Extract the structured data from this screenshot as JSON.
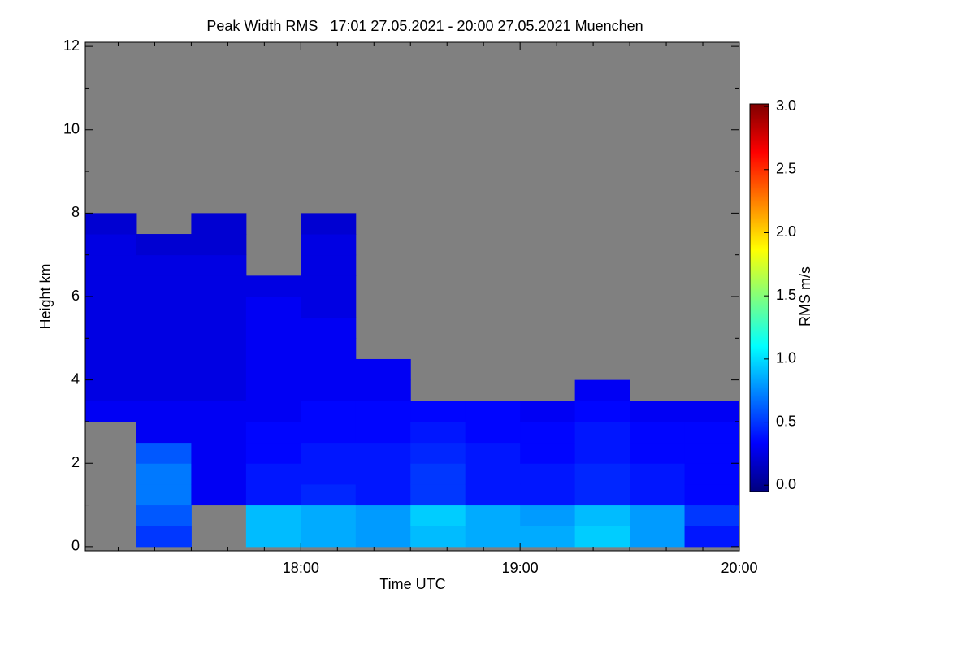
{
  "chart_data": {
    "type": "heatmap",
    "title": "Peak Width RMS   17:01 27.05.2021 - 20:00 27.05.2021 Muenchen",
    "x_label": "Time UTC",
    "y_label": "Height km",
    "colorbar_label": "RMS m/s",
    "nodata_color": "#808080",
    "colorscale": [
      "#00007f",
      "#0000ff",
      "#007fff",
      "#00ffff",
      "#7fff7f",
      "#ffff00",
      "#ff7f00",
      "#ff0000",
      "#7f0000"
    ],
    "xlim": [
      17.0167,
      20.0
    ],
    "xticks": [
      {
        "value": 18,
        "label": "18:00"
      },
      {
        "value": 19,
        "label": "19:00"
      },
      {
        "value": 20,
        "label": "20:00"
      }
    ],
    "xminorticks": [
      17.1667,
      17.3333,
      17.5,
      17.6667,
      17.8333,
      18.1667,
      18.3333,
      18.5,
      18.6667,
      18.8333,
      19.1667,
      19.3333,
      19.5,
      19.6667,
      19.8333
    ],
    "ylim": [
      -0.1,
      12.1
    ],
    "yticks": [
      0,
      2,
      4,
      6,
      8,
      10,
      12
    ],
    "yminorticks": [
      1,
      3,
      5,
      7,
      9,
      11
    ],
    "clim": [
      -0.05,
      3.02
    ],
    "cticks": [
      {
        "value": 0,
        "label": "0.0"
      },
      {
        "value": 0.5,
        "label": "0.5"
      },
      {
        "value": 1,
        "label": "1.0"
      },
      {
        "value": 1.5,
        "label": "1.5"
      },
      {
        "value": 2,
        "label": "2.0"
      },
      {
        "value": 2.5,
        "label": "2.5"
      },
      {
        "value": 3,
        "label": "3.0"
      }
    ],
    "x_edges": [
      17.0167,
      17.25,
      17.5,
      17.75,
      18.0,
      18.25,
      18.5,
      18.75,
      19.0,
      19.25,
      19.5,
      19.75,
      20.0
    ],
    "y_edges": [
      0,
      0.5,
      1,
      1.5,
      2,
      2.5,
      3,
      3.5,
      4,
      4.5,
      5,
      5.5,
      6,
      6.5,
      7,
      7.5,
      8,
      8.5
    ],
    "values": [
      [
        null,
        null,
        null,
        null,
        null,
        null,
        0.3,
        0.25,
        0.25,
        0.25,
        0.25,
        0.25,
        0.25,
        0.25,
        0.25,
        0.2,
        null
      ],
      [
        0.5,
        0.6,
        0.7,
        0.7,
        0.6,
        0.3,
        0.3,
        0.25,
        0.25,
        0.25,
        0.25,
        0.25,
        0.25,
        0.25,
        0.2,
        null,
        null
      ],
      [
        null,
        null,
        0.3,
        0.3,
        0.3,
        0.3,
        0.3,
        0.25,
        0.25,
        0.25,
        0.25,
        0.25,
        0.25,
        0.25,
        0.2,
        0.2,
        null
      ],
      [
        0.9,
        0.9,
        0.4,
        0.4,
        0.35,
        0.35,
        0.3,
        0.3,
        0.3,
        0.3,
        0.3,
        0.3,
        0.25,
        null,
        null,
        null,
        null
      ],
      [
        0.85,
        0.85,
        0.45,
        0.4,
        0.4,
        0.35,
        0.35,
        0.3,
        0.3,
        0.3,
        0.3,
        0.25,
        0.25,
        0.25,
        0.25,
        0.2,
        null
      ],
      [
        0.8,
        0.8,
        0.4,
        0.4,
        0.4,
        0.35,
        0.35,
        0.3,
        0.3,
        null,
        null,
        null,
        null,
        null,
        null,
        null,
        null
      ],
      [
        0.9,
        0.95,
        0.5,
        0.5,
        0.45,
        0.4,
        0.35,
        null,
        null,
        null,
        null,
        null,
        null,
        null,
        null,
        null,
        null
      ],
      [
        0.85,
        0.85,
        0.4,
        0.4,
        0.4,
        0.35,
        0.35,
        null,
        null,
        null,
        null,
        null,
        null,
        null,
        null,
        null,
        null
      ],
      [
        0.85,
        0.8,
        0.4,
        0.4,
        0.35,
        0.35,
        0.3,
        null,
        null,
        null,
        null,
        null,
        null,
        null,
        null,
        null,
        null
      ],
      [
        0.95,
        0.9,
        0.45,
        0.45,
        0.4,
        0.4,
        0.35,
        0.3,
        null,
        null,
        null,
        null,
        null,
        null,
        null,
        null,
        null
      ],
      [
        0.8,
        0.8,
        0.4,
        0.4,
        0.35,
        0.35,
        0.3,
        null,
        null,
        null,
        null,
        null,
        null,
        null,
        null,
        null,
        null
      ],
      [
        0.4,
        0.5,
        0.35,
        0.35,
        0.35,
        0.35,
        0.3,
        null,
        null,
        null,
        null,
        null,
        null,
        null,
        null,
        null,
        null
      ]
    ]
  }
}
